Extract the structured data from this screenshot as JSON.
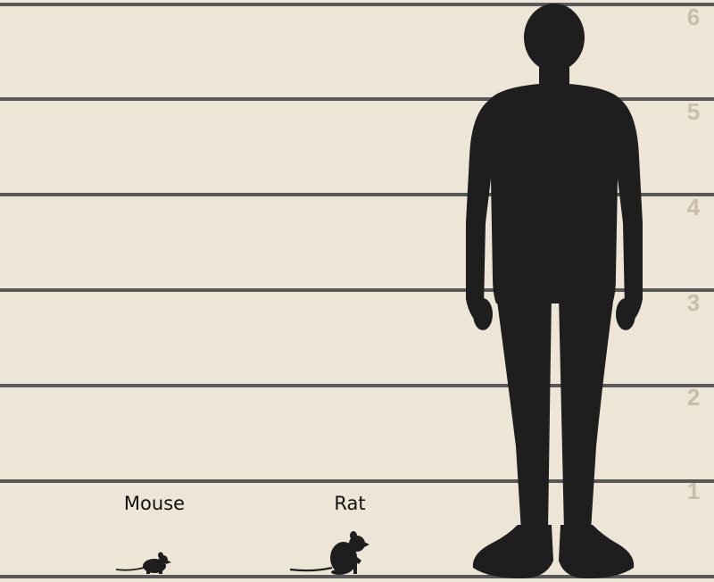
{
  "scale": {
    "unit_label": "",
    "ticks": [
      "1",
      "2",
      "3",
      "4",
      "5",
      "6"
    ]
  },
  "figures": [
    {
      "name": "Mouse",
      "shape": "mouse-silhouette"
    },
    {
      "name": "Rat",
      "shape": "rat-silhouette"
    },
    {
      "name": "",
      "shape": "human-silhouette"
    }
  ],
  "colors": {
    "background": "#ede6d6",
    "lines": "#58585a",
    "tick_labels": "#c8bda6",
    "silhouettes": "#1e1e1e"
  }
}
